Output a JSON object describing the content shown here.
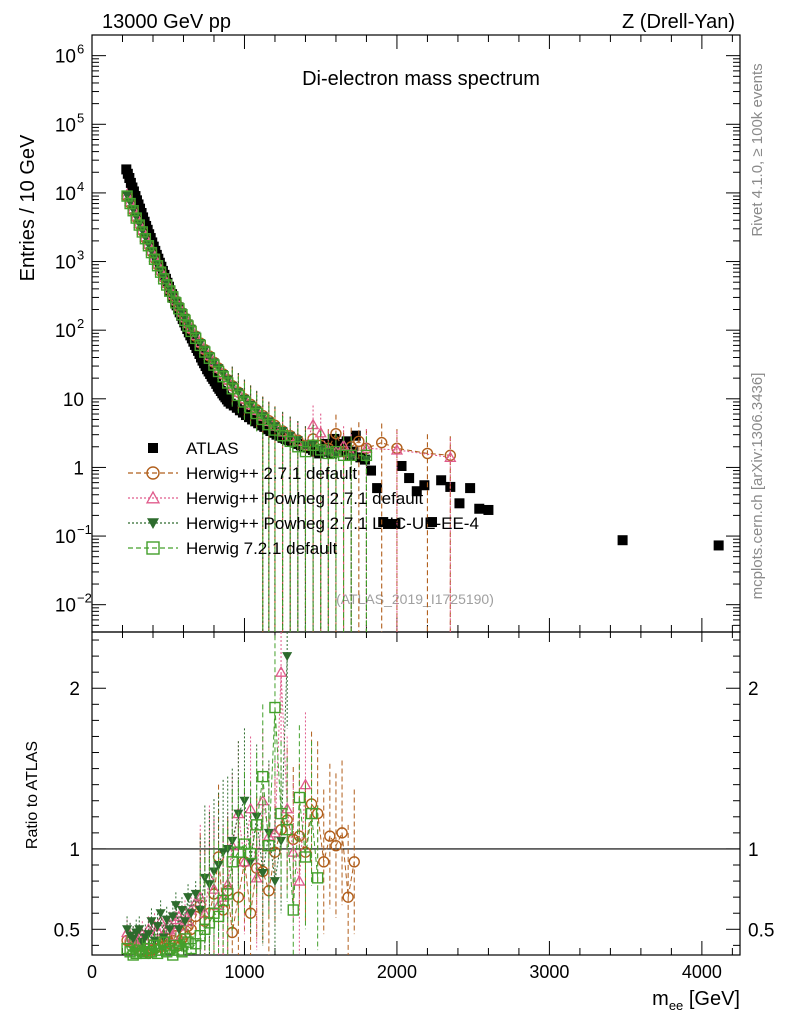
{
  "header": {
    "left": "13000 GeV pp",
    "right": "Z (Drell-Yan)"
  },
  "side_labels": {
    "rivet": "Rivet 4.1.0, ≥ 100k events",
    "mcplots": "mcplots.cern.ch [arXiv:1306.3436]"
  },
  "chart_data": {
    "type": "scatter",
    "title": "Di-electron mass spectrum",
    "watermark": "(ATLAS_2019_I1725190)",
    "xlabel": "m_ee [GeV]",
    "xlabel_main": "m",
    "xlabel_sub": "ee",
    "xlabel_unit": " [GeV]",
    "ylabel": "Entries / 10 GeV",
    "ratio_ylabel": "Ratio to ATLAS",
    "xlim": [
      0,
      4250
    ],
    "ylim": [
      0.004,
      2000000
    ],
    "ylog": true,
    "ratio_ylim": [
      0.34,
      2.35
    ],
    "x_ticks": [
      {
        "value": 0,
        "label": "0"
      },
      {
        "value": 1000,
        "label": "1000"
      },
      {
        "value": 2000,
        "label": "2000"
      },
      {
        "value": 3000,
        "label": "3000"
      },
      {
        "value": 4000,
        "label": "4000"
      }
    ],
    "y_ticks": [
      {
        "value": 0.01,
        "label": "10",
        "exp": "−2"
      },
      {
        "value": 0.1,
        "label": "10",
        "exp": "−1"
      },
      {
        "value": 1,
        "label": "1",
        "exp": ""
      },
      {
        "value": 10,
        "label": "10",
        "exp": ""
      },
      {
        "value": 100,
        "label": "10",
        "exp": "2"
      },
      {
        "value": 1000,
        "label": "10",
        "exp": "3"
      },
      {
        "value": 10000,
        "label": "10",
        "exp": "4"
      },
      {
        "value": 100000,
        "label": "10",
        "exp": "5"
      },
      {
        "value": 1000000,
        "label": "10",
        "exp": "6"
      }
    ],
    "ratio_ticks": [
      {
        "value": 0.5,
        "label": "0.5"
      },
      {
        "value": 1,
        "label": "1"
      },
      {
        "value": 2,
        "label": "2"
      }
    ],
    "legend_placement": "middle-left",
    "series": [
      {
        "name": "ATLAS",
        "color": "#000000",
        "marker": "square-filled",
        "x": [
          225,
          235,
          245,
          255,
          265,
          275,
          285,
          295,
          305,
          315,
          325,
          335,
          345,
          355,
          365,
          375,
          385,
          395,
          405,
          415,
          425,
          435,
          445,
          455,
          465,
          475,
          485,
          495,
          505,
          515,
          525,
          535,
          545,
          555,
          565,
          575,
          585,
          595,
          605,
          615,
          625,
          635,
          645,
          655,
          665,
          675,
          685,
          695,
          705,
          715,
          725,
          735,
          745,
          755,
          765,
          775,
          785,
          795,
          805,
          815,
          825,
          835,
          845,
          855,
          865,
          875,
          885,
          895,
          910,
          930,
          950,
          970,
          990,
          1010,
          1030,
          1050,
          1070,
          1090,
          1110,
          1130,
          1150,
          1170,
          1190,
          1210,
          1230,
          1250,
          1270,
          1290,
          1310,
          1330,
          1350,
          1370,
          1390,
          1410,
          1430,
          1450,
          1470,
          1490,
          1510,
          1530,
          1550,
          1570,
          1590,
          1610,
          1630,
          1650,
          1670,
          1690,
          1710,
          1730,
          1760,
          1790,
          1830,
          1870,
          1910,
          1950,
          1990,
          2030,
          2080,
          2130,
          2180,
          2230,
          2290,
          2350,
          2410,
          2480,
          2540,
          2600,
          3480,
          4110
        ],
        "y": [
          22000,
          19000,
          16500,
          14000,
          12000,
          10500,
          9000,
          7800,
          6800,
          5900,
          5100,
          4400,
          3800,
          3300,
          2900,
          2500,
          2200,
          1900,
          1650,
          1430,
          1250,
          1100,
          960,
          840,
          730,
          640,
          560,
          490,
          430,
          380,
          335,
          295,
          260,
          230,
          205,
          182,
          162,
          145,
          130,
          116,
          104,
          93,
          84,
          76,
          68,
          61,
          55,
          50,
          45,
          40,
          36,
          33,
          30,
          27,
          25,
          23,
          21,
          19.5,
          18,
          16.5,
          15,
          14,
          13,
          12,
          11.2,
          10.5,
          9.8,
          9.1,
          8.5,
          8,
          7.4,
          6.8,
          6.3,
          5.8,
          5.4,
          5,
          4.7,
          4.4,
          4.1,
          3.9,
          3.6,
          3.4,
          3.2,
          3.0,
          2.9,
          2.7,
          2.6,
          2.5,
          2.4,
          2.3,
          2.2,
          2.1,
          2,
          1.95,
          1.9,
          1.8,
          1.7,
          1.6,
          1.7,
          2.2,
          1.8,
          1.6,
          2.6,
          2.2,
          1.9,
          1.7,
          2.4,
          1.5,
          1.7,
          2.9,
          1.4,
          1.3,
          0.9,
          0.5,
          0.16,
          0.15,
          0.15,
          1.05,
          0.7,
          0.45,
          0.55,
          0.16,
          0.65,
          0.52,
          0.3,
          0.5,
          0.25,
          0.24,
          0.087,
          0.073
        ]
      },
      {
        "name": "Herwig++ 2.7.1 default",
        "color": "#b15f1c",
        "marker": "circle-open",
        "line": "dashed",
        "x": [
          230,
          250,
          270,
          290,
          310,
          330,
          350,
          370,
          390,
          410,
          430,
          450,
          470,
          490,
          510,
          530,
          550,
          570,
          590,
          610,
          630,
          650,
          680,
          710,
          740,
          770,
          800,
          830,
          860,
          890,
          920,
          960,
          1000,
          1040,
          1080,
          1120,
          1160,
          1200,
          1250,
          1300,
          1350,
          1400,
          1450,
          1500,
          1550,
          1600,
          1650,
          1700,
          1750,
          1800,
          1900,
          2000,
          2200,
          2350
        ],
        "y": [
          9000,
          7100,
          5600,
          4400,
          3500,
          2800,
          2200,
          1750,
          1400,
          1120,
          900,
          730,
          590,
          480,
          390,
          320,
          265,
          220,
          180,
          150,
          124,
          104,
          82,
          65,
          52,
          42,
          34,
          28,
          23,
          19,
          15.5,
          12.5,
          10,
          8.3,
          6.9,
          5.7,
          4.8,
          4.1,
          3.4,
          2.9,
          2.5,
          2.1,
          2.6,
          2.1,
          1.9,
          3.1,
          1.7,
          2.0,
          2.4,
          1.9,
          2.3,
          1.9,
          1.6,
          1.5
        ],
        "ratio": [
          0.43,
          0.42,
          0.41,
          0.39,
          0.37,
          0.36,
          0.36,
          0.35,
          0.37,
          0.38,
          0.4,
          0.39,
          0.42,
          0.44,
          0.41,
          0.43,
          0.46,
          0.41,
          0.44,
          0.47,
          0.52,
          0.5,
          0.58,
          0.65,
          0.55,
          0.6,
          0.72,
          0.95,
          0.62,
          0.74,
          0.48,
          0.7,
          0.92,
          0.6,
          0.88,
          0.86,
          0.74,
          0.98,
          1.12,
          1.18,
          1.06,
          1.08,
          0.98,
          1.28,
          1.22,
          0.92,
          1.08,
          1.02,
          1.1,
          0.7,
          0.92
        ],
        "ratio_x": [
          230,
          250,
          270,
          290,
          310,
          330,
          350,
          370,
          390,
          410,
          430,
          450,
          470,
          490,
          510,
          530,
          550,
          570,
          590,
          610,
          630,
          650,
          680,
          710,
          740,
          770,
          800,
          830,
          860,
          890,
          920,
          960,
          1000,
          1040,
          1080,
          1120,
          1160,
          1200,
          1240,
          1280,
          1320,
          1360,
          1400,
          1440,
          1480,
          1520,
          1560,
          1600,
          1640,
          1680,
          1720
        ]
      },
      {
        "name": "Herwig++ Powheg 2.7.1 default",
        "color": "#e05c8c",
        "marker": "triangle-up-open",
        "line": "dotted",
        "x": [
          230,
          250,
          270,
          290,
          310,
          330,
          350,
          370,
          390,
          410,
          430,
          450,
          470,
          490,
          510,
          530,
          550,
          570,
          590,
          610,
          630,
          650,
          680,
          710,
          740,
          770,
          800,
          830,
          860,
          890,
          920,
          960,
          1000,
          1040,
          1080,
          1120,
          1160,
          1200,
          1250,
          1300,
          1350,
          1400,
          1450,
          1500,
          1550,
          1600,
          1650,
          1700,
          1800,
          2000,
          2350
        ],
        "y": [
          9500,
          7500,
          5900,
          4600,
          3600,
          2900,
          2300,
          1800,
          1450,
          1160,
          930,
          750,
          600,
          490,
          400,
          330,
          270,
          225,
          185,
          153,
          127,
          106,
          84,
          66,
          53,
          43,
          35,
          28,
          23,
          19,
          15.5,
          12.4,
          10,
          8.2,
          6.8,
          5.6,
          4.7,
          4.0,
          3.3,
          2.8,
          2.4,
          2.1,
          4.2,
          3.2,
          1.8,
          1.7,
          2.1,
          1.6,
          1.9,
          1.8,
          1.4
        ],
        "ratio": [
          0.48,
          0.46,
          0.44,
          0.42,
          0.45,
          0.47,
          0.43,
          0.5,
          0.46,
          0.52,
          0.49,
          0.55,
          0.47,
          0.5,
          0.53,
          0.46,
          0.56,
          0.58,
          0.52,
          0.6,
          0.55,
          0.62,
          0.67,
          0.7,
          0.6,
          0.82,
          0.75,
          0.65,
          0.7,
          0.78,
          1.02,
          1.22,
          0.92,
          1.25,
          0.82,
          1.3,
          1.08,
          1.1,
          2.1,
          1.25,
          0.98,
          0.8,
          1.4
        ],
        "ratio_x": [
          230,
          250,
          270,
          290,
          310,
          330,
          350,
          370,
          390,
          410,
          430,
          450,
          470,
          490,
          510,
          530,
          550,
          570,
          590,
          610,
          630,
          650,
          680,
          710,
          740,
          770,
          800,
          830,
          860,
          890,
          920,
          960,
          1000,
          1040,
          1080,
          1120,
          1160,
          1200,
          1240,
          1280,
          1320,
          1360,
          1400
        ]
      },
      {
        "name": "Herwig++ Powheg 2.7.1 LHC-UE-EE-4",
        "color": "#2d6b2d",
        "marker": "triangle-down-filled",
        "line": "dotted",
        "x": [
          230,
          250,
          270,
          290,
          310,
          330,
          350,
          370,
          390,
          410,
          430,
          450,
          470,
          490,
          510,
          530,
          550,
          570,
          590,
          610,
          630,
          650,
          680,
          710,
          740,
          770,
          800,
          830,
          860,
          890,
          920,
          960,
          1000,
          1040,
          1080,
          1120,
          1160,
          1200,
          1250,
          1300,
          1350,
          1400,
          1450,
          1500,
          1550,
          1600,
          1700,
          1800
        ],
        "y": [
          9200,
          7300,
          5700,
          4500,
          3550,
          2850,
          2250,
          1780,
          1420,
          1140,
          920,
          740,
          595,
          485,
          395,
          325,
          268,
          222,
          182,
          151,
          125,
          105,
          83,
          65,
          52,
          42,
          34,
          28,
          23,
          19,
          15.5,
          12.5,
          10,
          8.2,
          6.8,
          5.6,
          4.7,
          4.0,
          3.4,
          2.9,
          2.5,
          2.1,
          2.2,
          1.8,
          1.6,
          1.5,
          1.4,
          1.3
        ],
        "ratio": [
          0.5,
          0.46,
          0.44,
          0.48,
          0.5,
          0.42,
          0.45,
          0.47,
          0.55,
          0.43,
          0.52,
          0.6,
          0.45,
          0.56,
          0.5,
          0.58,
          0.65,
          0.5,
          0.62,
          0.55,
          0.7,
          0.6,
          0.72,
          0.62,
          0.82,
          0.78,
          0.86,
          0.9,
          0.98,
          1.0,
          1.05,
          1.22,
          1.3,
          0.92,
          1.2,
          0.85,
          1.1,
          0.8,
          1.05,
          2.2
        ],
        "ratio_x": [
          230,
          250,
          270,
          290,
          310,
          330,
          350,
          370,
          390,
          410,
          430,
          450,
          470,
          490,
          510,
          530,
          550,
          570,
          590,
          610,
          630,
          650,
          680,
          710,
          740,
          770,
          800,
          830,
          860,
          890,
          920,
          960,
          1000,
          1040,
          1080,
          1120,
          1160,
          1200,
          1240,
          1280
        ]
      },
      {
        "name": "Herwig 7.2.1 default",
        "color": "#43a02b",
        "marker": "square-open",
        "line": "dashed",
        "x": [
          230,
          250,
          270,
          290,
          310,
          330,
          350,
          370,
          390,
          410,
          430,
          450,
          470,
          490,
          510,
          530,
          550,
          570,
          590,
          610,
          630,
          650,
          680,
          710,
          740,
          770,
          800,
          830,
          860,
          890,
          920,
          960,
          1000,
          1040,
          1080,
          1120,
          1160,
          1200,
          1250,
          1300,
          1350,
          1400,
          1450,
          1500,
          1550,
          1600,
          1650,
          1700,
          1800
        ],
        "y": [
          9000,
          7000,
          5500,
          4300,
          3400,
          2700,
          2150,
          1700,
          1350,
          1080,
          870,
          700,
          560,
          455,
          370,
          305,
          250,
          205,
          168,
          139,
          115,
          96,
          76,
          60,
          48,
          39,
          31,
          25,
          21,
          17,
          14,
          11.2,
          9,
          7.4,
          6.1,
          5.0,
          4.2,
          3.5,
          2.9,
          2.4,
          2.0,
          1.7,
          2.1,
          1.8,
          1.6,
          1.7,
          1.5,
          1.5,
          1.5
        ],
        "ratio": [
          0.38,
          0.36,
          0.34,
          0.35,
          0.37,
          0.36,
          0.35,
          0.38,
          0.36,
          0.4,
          0.35,
          0.37,
          0.42,
          0.36,
          0.38,
          0.34,
          0.4,
          0.37,
          0.36,
          0.44,
          0.42,
          0.38,
          0.41,
          0.46,
          0.5,
          0.54,
          0.6,
          0.58,
          0.68,
          0.72,
          0.92,
          0.98,
          1.03,
          0.97,
          1.15,
          1.45,
          1.02,
          1.88,
          1.22,
          1.12,
          0.62,
          1.32,
          0.95,
          1.22,
          0.82
        ],
        "ratio_x": [
          230,
          250,
          270,
          290,
          310,
          330,
          350,
          370,
          390,
          410,
          430,
          450,
          470,
          490,
          510,
          530,
          550,
          570,
          590,
          610,
          630,
          650,
          680,
          710,
          740,
          770,
          800,
          830,
          860,
          890,
          920,
          960,
          1000,
          1040,
          1080,
          1120,
          1160,
          1200,
          1240,
          1280,
          1320,
          1360,
          1400,
          1440,
          1480
        ]
      }
    ]
  }
}
